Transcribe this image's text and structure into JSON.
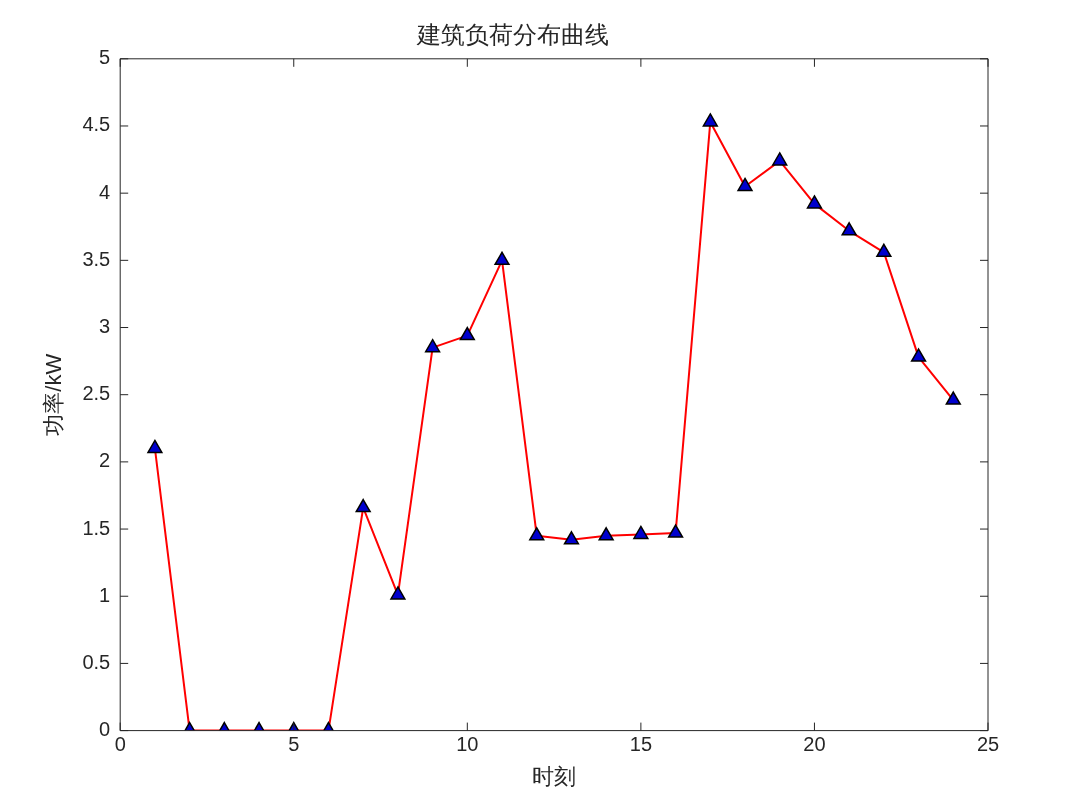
{
  "chart_data": {
    "type": "line",
    "title": "建筑负荷分布曲线",
    "xlabel": "时刻",
    "ylabel": "功率/kW",
    "x": [
      1,
      2,
      3,
      4,
      5,
      6,
      7,
      8,
      9,
      10,
      11,
      12,
      13,
      14,
      15,
      16,
      17,
      18,
      19,
      20,
      21,
      22,
      23,
      24
    ],
    "series": [
      {
        "color": "#ff0000",
        "colors": [
          "#0000cd",
          "#0000cd",
          "#0000cd",
          "#0000cd",
          "#0000cd",
          "#0000cd",
          "#0000cd",
          "#0000cd",
          "#0000cd",
          "#0000cd",
          "#0000cd",
          "#0000cd",
          "#0000cd",
          "#0000cd",
          "#0000cd",
          "#0000cd",
          "#0000cd",
          "#0000cd",
          "#0000cd",
          "#0000cd",
          "#0000cd",
          "#0000cd",
          "#0000cd",
          "#0000cd"
        ],
        "values": [
          2.1,
          0,
          0,
          0,
          0,
          0,
          1.66,
          1.01,
          2.85,
          2.94,
          3.5,
          1.45,
          1.42,
          1.45,
          1.46,
          1.47,
          4.53,
          4.05,
          4.24,
          3.92,
          3.72,
          3.56,
          2.78,
          2.46
        ]
      }
    ],
    "xlim": [
      0,
      25
    ],
    "xticks": [
      0,
      5,
      10,
      15,
      20,
      25
    ],
    "ylim": [
      0,
      5
    ],
    "yticks": [
      0,
      0.5,
      1,
      1.5,
      2,
      2.5,
      3,
      3.5,
      4,
      4.5,
      5
    ],
    "grid": false,
    "legend": false,
    "marker": "triangle",
    "line_style": "solid"
  }
}
